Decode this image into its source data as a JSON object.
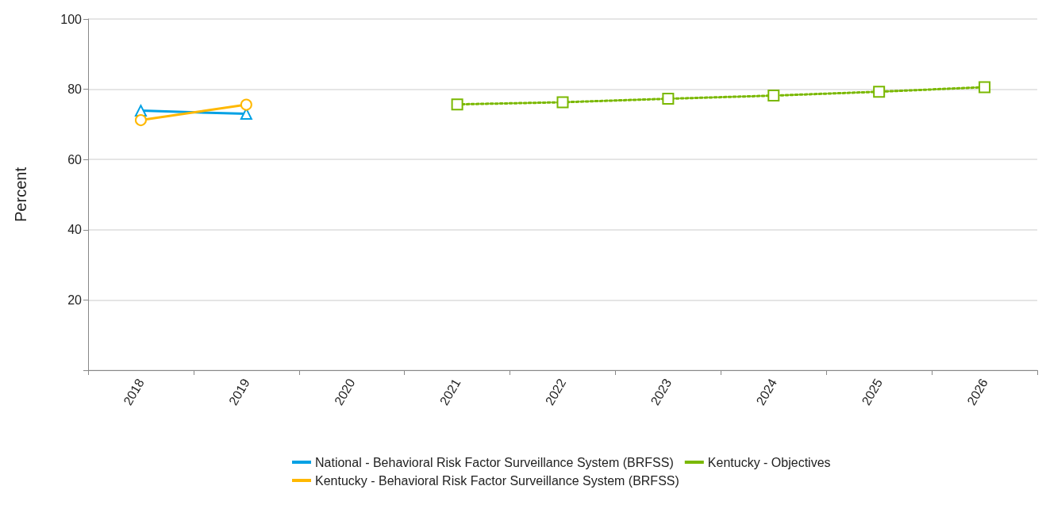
{
  "chart_data": {
    "type": "line",
    "ylabel": "Percent",
    "categories": [
      "2018",
      "2019",
      "2020",
      "2021",
      "2022",
      "2023",
      "2024",
      "2025",
      "2026"
    ],
    "series": [
      {
        "name": "National - Behavioral Risk Factor Surveillance System (BRFSS)",
        "color": "#00a1e4",
        "marker": "triangle",
        "line_style": "solid",
        "values": [
          73.9,
          73.0,
          null,
          null,
          null,
          null,
          null,
          null,
          null
        ]
      },
      {
        "name": "Kentucky - Behavioral Risk Factor Surveillance System (BRFSS)",
        "color": "#ffb800",
        "marker": "circle",
        "line_style": "solid",
        "values": [
          71.2,
          75.6,
          null,
          null,
          null,
          null,
          null,
          null,
          null
        ]
      },
      {
        "name": "Kentucky - Objectives",
        "color": "#7ab800",
        "marker": "square",
        "line_style": "dotted",
        "values": [
          null,
          null,
          null,
          75.7,
          76.3,
          77.3,
          78.2,
          79.3,
          80.6
        ]
      }
    ],
    "ylim": [
      0,
      100
    ],
    "yticks": [
      {
        "value": 0,
        "label": null
      },
      20,
      40,
      60,
      80,
      100
    ],
    "grid": "y",
    "legend": "bottom"
  }
}
